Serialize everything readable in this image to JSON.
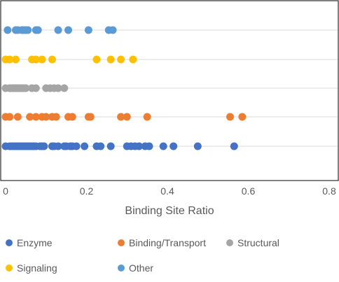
{
  "chart_data": {
    "type": "scatter",
    "title": "",
    "xlabel": "Binding Site Ratio",
    "ylabel": "",
    "xlim": [
      0,
      0.8
    ],
    "x_ticks": [
      "0",
      "0.2",
      "0.4",
      "0.6",
      "0.8"
    ],
    "x_tick_values": [
      0,
      0.2,
      0.4,
      0.6,
      0.8
    ],
    "grid": true,
    "legend_position": "bottom",
    "series": [
      {
        "name": "Enzyme",
        "color": "#4472C4",
        "row": 0,
        "values": [
          0.0,
          0.01,
          0.015,
          0.02,
          0.025,
          0.03,
          0.035,
          0.04,
          0.045,
          0.05,
          0.055,
          0.06,
          0.065,
          0.07,
          0.075,
          0.085,
          0.09,
          0.095,
          0.115,
          0.12,
          0.13,
          0.145,
          0.15,
          0.16,
          0.165,
          0.175,
          0.195,
          0.225,
          0.235,
          0.26,
          0.3,
          0.31,
          0.32,
          0.33,
          0.345,
          0.355,
          0.39,
          0.415,
          0.475,
          0.565
        ]
      },
      {
        "name": "Binding/Transport",
        "color": "#ED7D31",
        "row": 1,
        "values": [
          0.0,
          0.01,
          0.03,
          0.06,
          0.075,
          0.09,
          0.1,
          0.115,
          0.125,
          0.155,
          0.165,
          0.205,
          0.21,
          0.285,
          0.3,
          0.35,
          0.555,
          0.585
        ]
      },
      {
        "name": "Structural",
        "color": "#A5A5A5",
        "row": 2,
        "values": [
          0.0,
          0.01,
          0.015,
          0.02,
          0.025,
          0.03,
          0.035,
          0.04,
          0.045,
          0.05,
          0.065,
          0.075,
          0.1,
          0.11,
          0.12,
          0.13,
          0.145
        ]
      },
      {
        "name": "Signaling",
        "color": "#FFC000",
        "row": 3,
        "values": [
          0.0,
          0.01,
          0.025,
          0.065,
          0.075,
          0.09,
          0.115,
          0.225,
          0.26,
          0.285,
          0.315
        ]
      },
      {
        "name": "Other",
        "color": "#5B9BD5",
        "row": 4,
        "values": [
          0.005,
          0.025,
          0.03,
          0.04,
          0.045,
          0.05,
          0.055,
          0.075,
          0.08,
          0.13,
          0.155,
          0.205,
          0.255,
          0.265
        ]
      }
    ],
    "legend": {
      "rows": [
        [
          "Enzyme",
          "Binding/Transport",
          "Structural"
        ],
        [
          "Signaling",
          "Other"
        ]
      ]
    },
    "colors": {
      "gridline": "#D9D9D9",
      "border": "#000000",
      "text": "#595959"
    }
  }
}
